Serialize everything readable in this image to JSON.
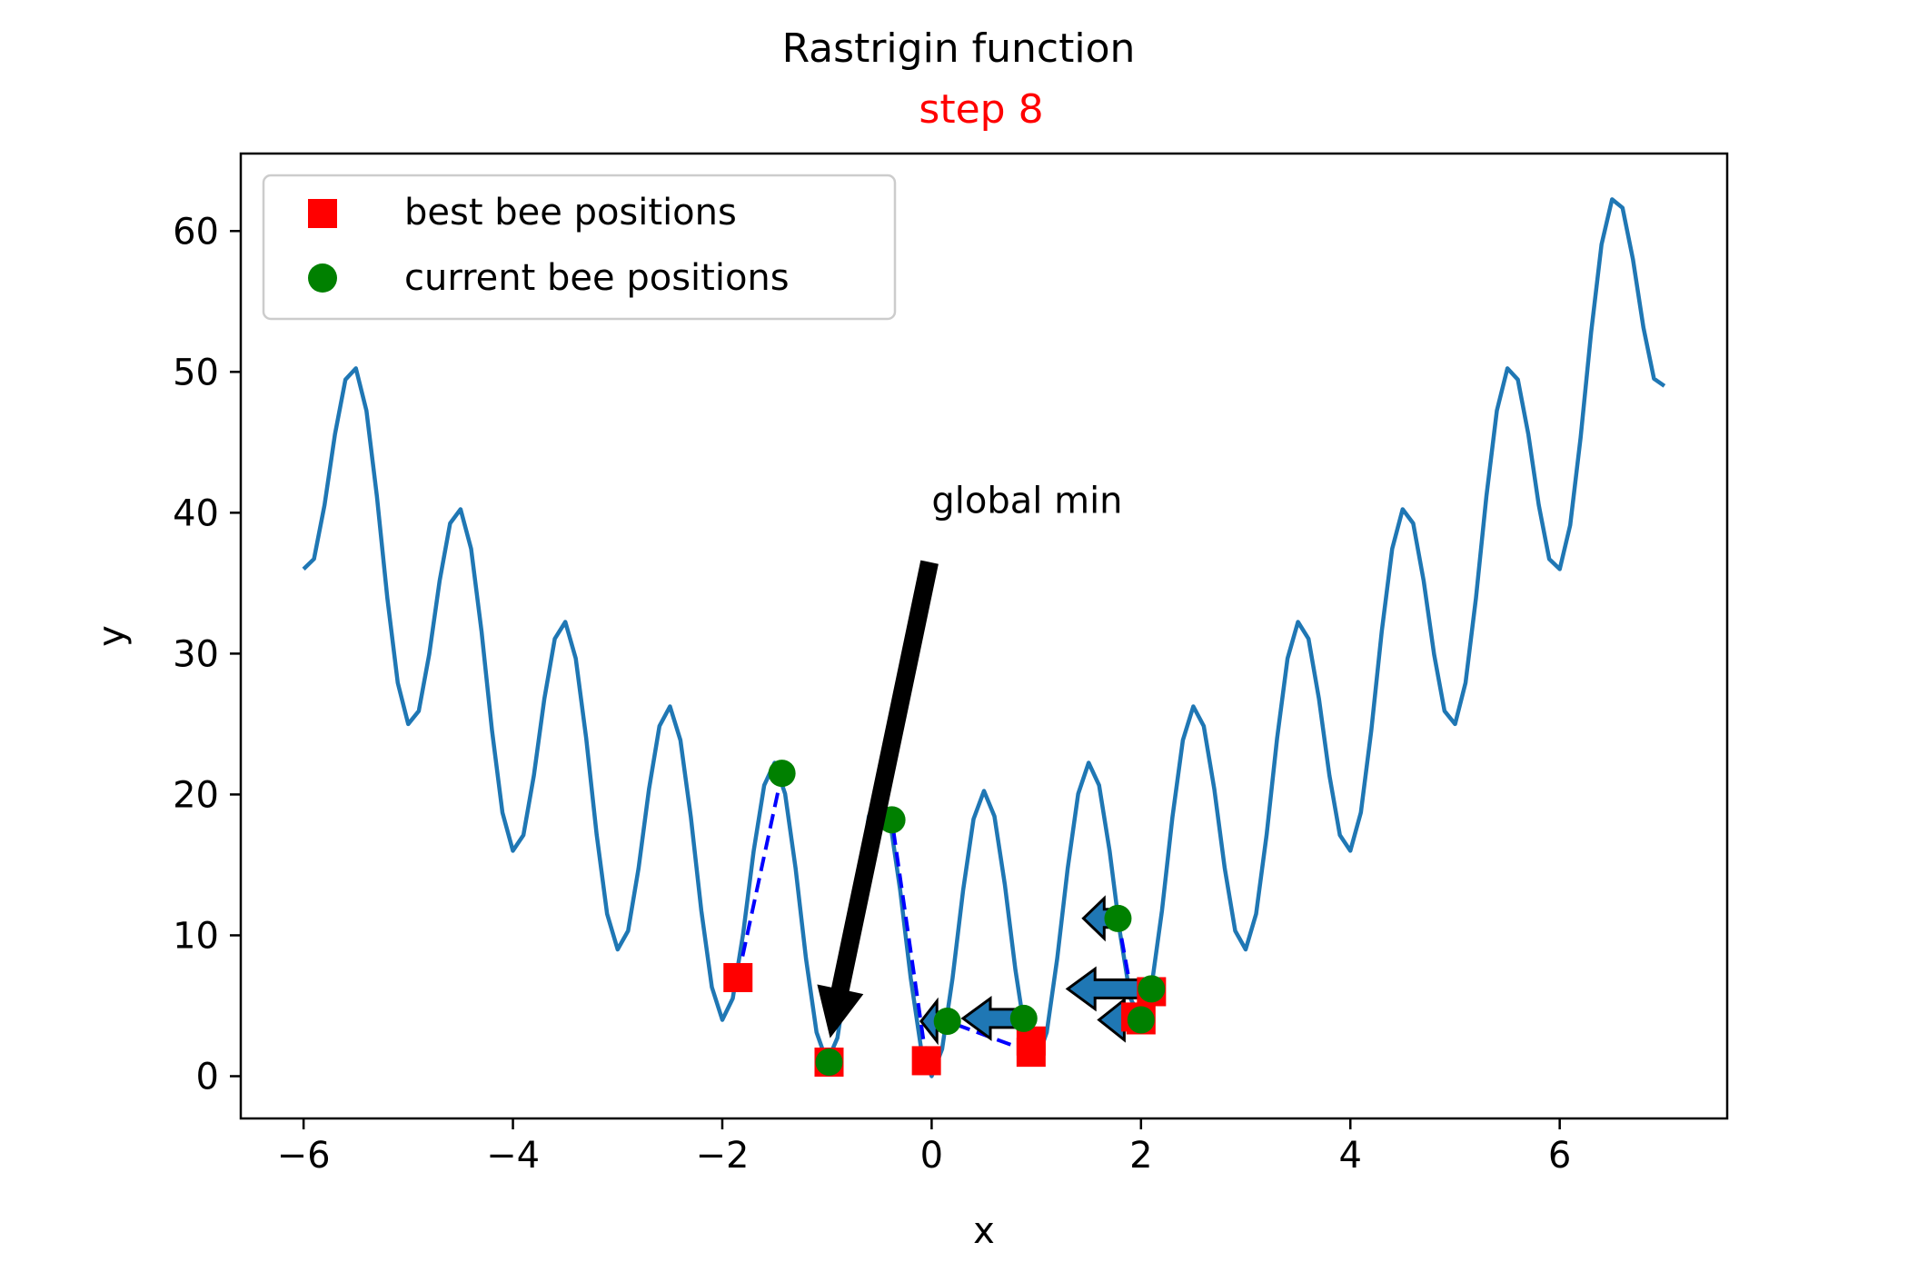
{
  "chart_data": {
    "type": "line",
    "title": "Rastrigin function",
    "subtitle": "step 8",
    "subtitle_color": "#ff0000",
    "xlabel": "x",
    "ylabel": "y",
    "xlim": [
      -6.6,
      7.6
    ],
    "ylim": [
      -3,
      65.5
    ],
    "xticks": [
      -6,
      -4,
      -2,
      0,
      2,
      4,
      6
    ],
    "xtick_labels": [
      "−6",
      "−4",
      "−2",
      "0",
      "2",
      "4",
      "6"
    ],
    "yticks": [
      0,
      10,
      20,
      30,
      40,
      50,
      60
    ],
    "ytick_labels": [
      "0",
      "10",
      "20",
      "30",
      "40",
      "50",
      "60"
    ],
    "grid": false,
    "legend": {
      "position": "top-left",
      "entries": [
        {
          "label": "best bee positions",
          "marker": "square",
          "color": "#ff0000"
        },
        {
          "label": "current bee positions",
          "marker": "circle",
          "color": "#008000"
        }
      ]
    },
    "curve": {
      "color": "#1f77b4",
      "x_start": -6,
      "x_end": 7,
      "points": 131,
      "formula": "10 + x^2 - 10*cos(2*pi*x)"
    },
    "best_bee_positions": [
      {
        "x": -1.85,
        "y": 7
      },
      {
        "x": -0.98,
        "y": 1
      },
      {
        "x": -0.05,
        "y": 1.1
      },
      {
        "x": 0.95,
        "y": 1.7
      },
      {
        "x": 0.95,
        "y": 2.5
      },
      {
        "x": 1.95,
        "y": 4.2
      },
      {
        "x": 2.0,
        "y": 4.0
      },
      {
        "x": 2.1,
        "y": 6.0
      }
    ],
    "current_bee_positions": [
      {
        "x": -1.43,
        "y": 21.5
      },
      {
        "x": -0.98,
        "y": 1.0
      },
      {
        "x": -0.38,
        "y": 18.2
      },
      {
        "x": 0.15,
        "y": 3.9
      },
      {
        "x": 0.88,
        "y": 4.1
      },
      {
        "x": 1.78,
        "y": 11.2
      },
      {
        "x": 2.0,
        "y": 4.0
      },
      {
        "x": 2.1,
        "y": 6.2
      }
    ],
    "trails": [
      {
        "from": {
          "x": -1.85,
          "y": 7
        },
        "to": {
          "x": -1.43,
          "y": 21.5
        }
      },
      {
        "from": {
          "x": -0.05,
          "y": 1.1
        },
        "to": {
          "x": -0.38,
          "y": 18.2
        }
      },
      {
        "from": {
          "x": 0.95,
          "y": 1.7
        },
        "to": {
          "x": 0.15,
          "y": 3.9
        }
      },
      {
        "from": {
          "x": 1.95,
          "y": 4.2
        },
        "to": {
          "x": 1.78,
          "y": 11.2
        }
      }
    ],
    "velocity_arrows": [
      {
        "from": {
          "x": 0.88,
          "y": 4.1
        },
        "to": {
          "x": 0.3,
          "y": 4.1
        }
      },
      {
        "from": {
          "x": 0.15,
          "y": 3.9
        },
        "to": {
          "x": -0.1,
          "y": 3.9
        }
      },
      {
        "from": {
          "x": 1.78,
          "y": 11.2
        },
        "to": {
          "x": 1.45,
          "y": 11.2
        }
      },
      {
        "from": {
          "x": 2.05,
          "y": 6.2
        },
        "to": {
          "x": 1.3,
          "y": 6.2
        }
      },
      {
        "from": {
          "x": 2.0,
          "y": 4.0
        },
        "to": {
          "x": 1.6,
          "y": 4.0
        }
      }
    ],
    "annotation": {
      "text": "global min",
      "text_pos": {
        "x": 0,
        "y": 40
      },
      "arrow_from": {
        "x": -0.02,
        "y": 36.5
      },
      "arrow_to": {
        "x": -0.97,
        "y": 2.7
      }
    }
  }
}
